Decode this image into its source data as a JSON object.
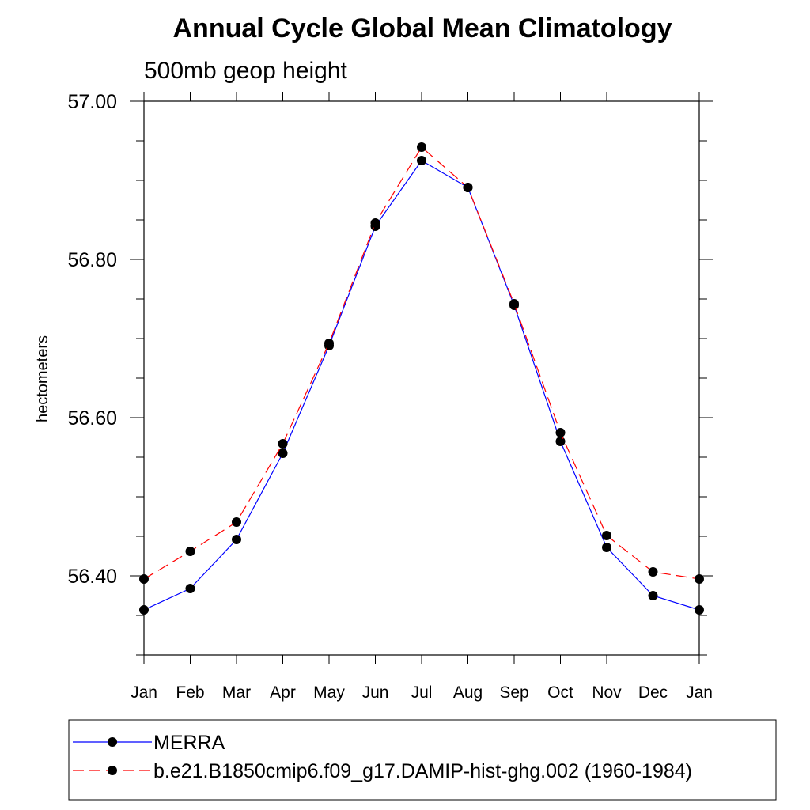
{
  "chart_data": {
    "type": "line",
    "title": "Annual Cycle Global Mean Climatology",
    "subtitle": "500mb geop height",
    "xlabel": "",
    "ylabel": "hectometers",
    "categories": [
      "Jan",
      "Feb",
      "Mar",
      "Apr",
      "May",
      "Jun",
      "Jul",
      "Aug",
      "Sep",
      "Oct",
      "Nov",
      "Dec",
      "Jan"
    ],
    "ylim": [
      56.3,
      57.0
    ],
    "yticks": [
      "56.40",
      "56.60",
      "56.80",
      "57.00"
    ],
    "series": [
      {
        "name": "MERRA",
        "color": "#0000ff",
        "style": "solid",
        "values": [
          56.357,
          56.384,
          56.446,
          56.555,
          56.691,
          56.842,
          56.925,
          56.891,
          56.742,
          56.57,
          56.436,
          56.375,
          56.357
        ]
      },
      {
        "name": "b.e21.B1850cmip6.f09_g17.DAMIP-hist-ghg.002 (1960-1984)",
        "color": "#ff0000",
        "style": "dashed",
        "values": [
          56.396,
          56.431,
          56.468,
          56.567,
          56.694,
          56.846,
          56.942,
          56.891,
          56.744,
          56.581,
          56.451,
          56.405,
          56.396
        ]
      }
    ],
    "grid": false,
    "legend_position": "bottom"
  }
}
